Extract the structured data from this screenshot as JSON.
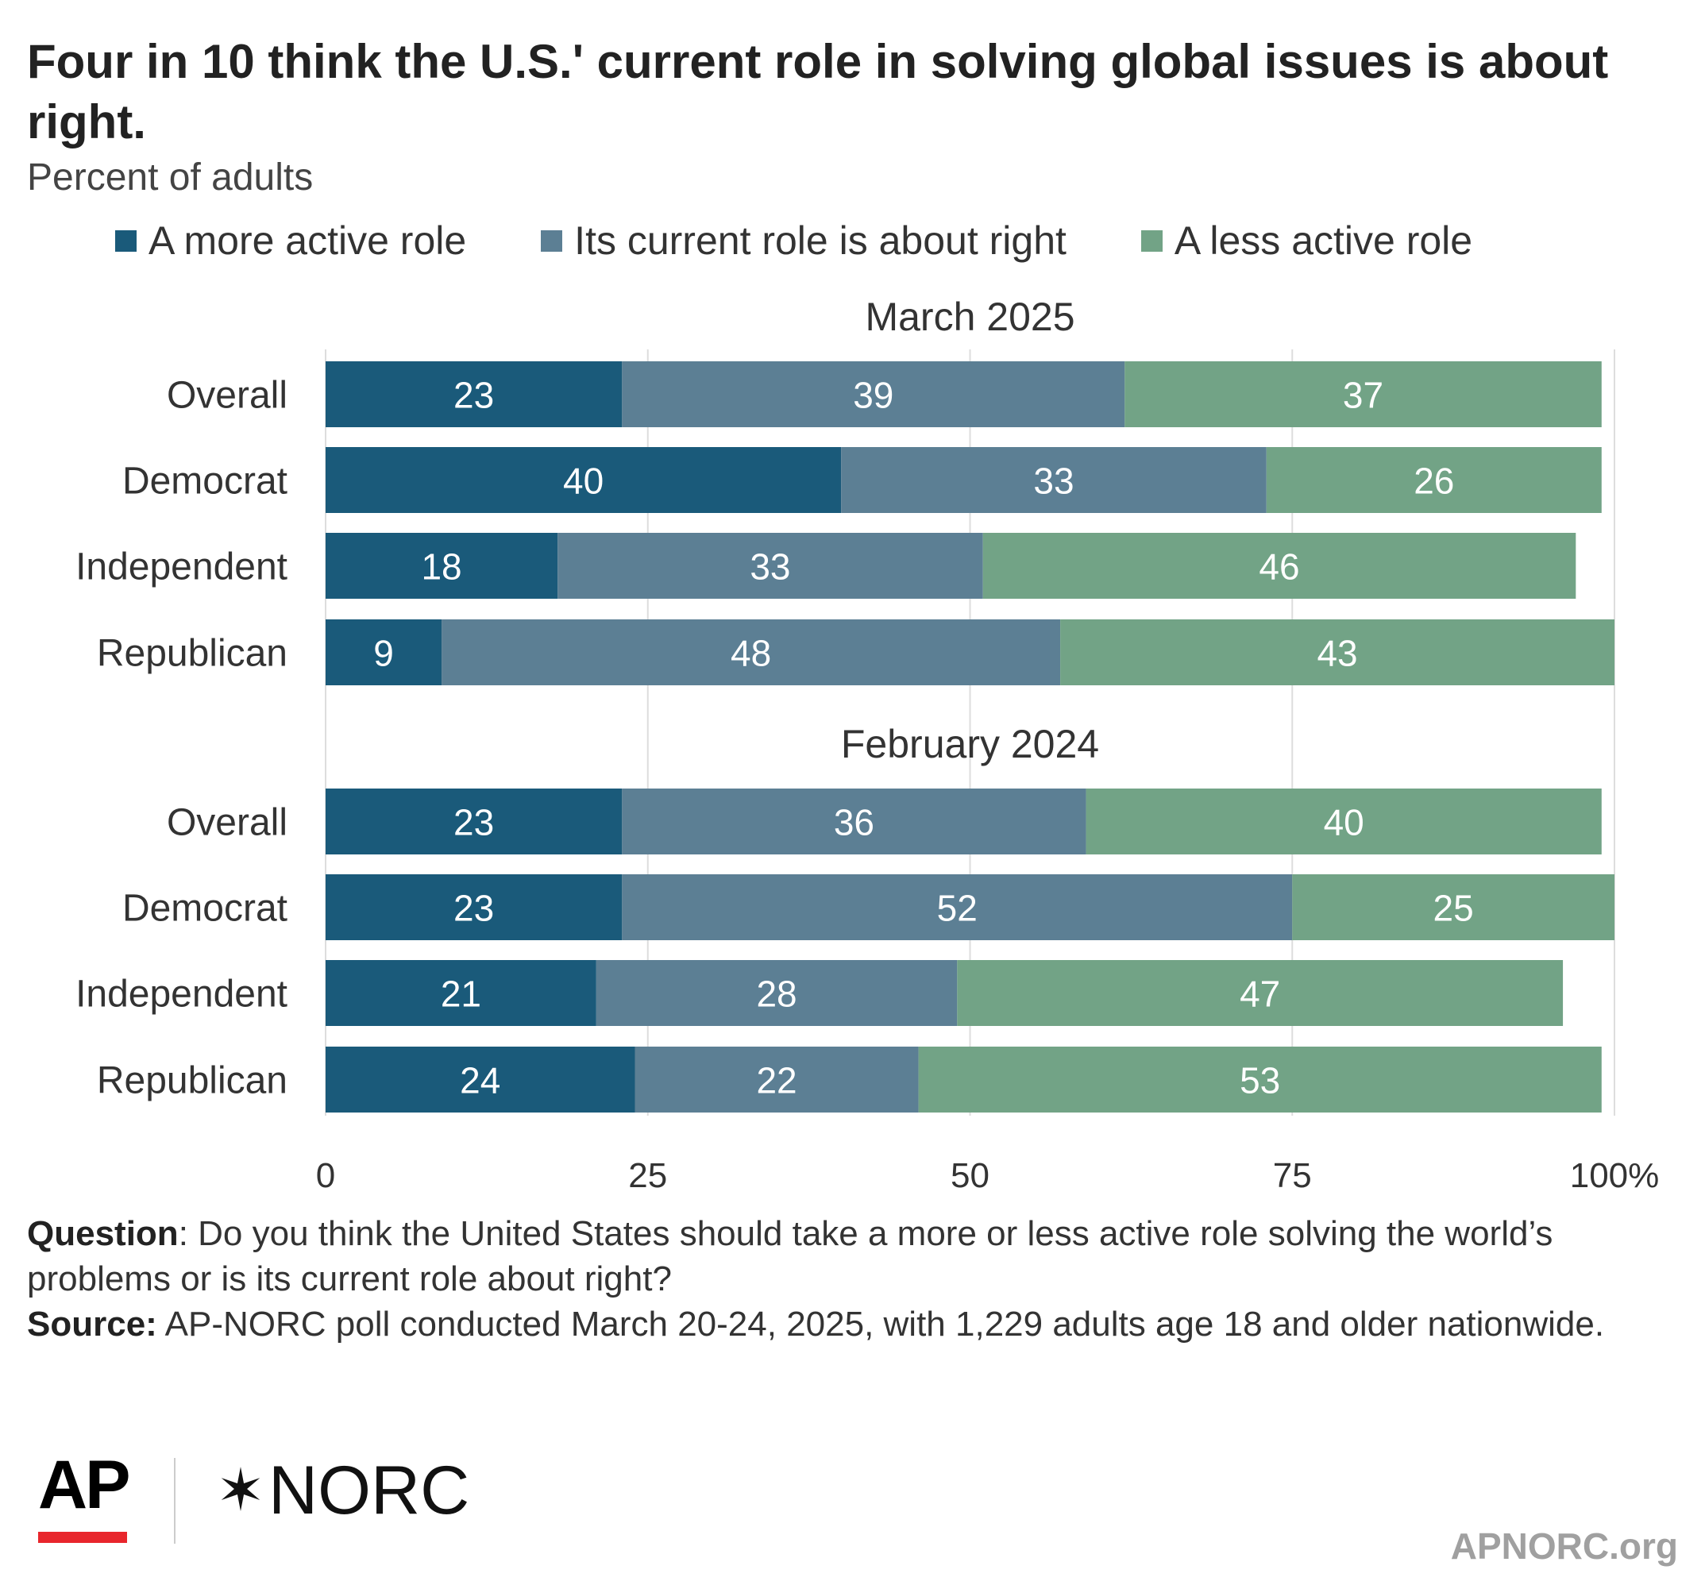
{
  "title": "Four in 10 think the U.S.' current role in solving global issues is about right.",
  "subtitle": "Percent of adults",
  "colors": {
    "more_active": "#1a5a7a",
    "about_right": "#5c7f94",
    "less_active": "#72a386",
    "bar_label": "#ffffff",
    "grid": "#dddddd"
  },
  "chart_data": {
    "type": "bar",
    "orientation": "horizontal",
    "stacked": true,
    "series": [
      {
        "name": "A more active role"
      },
      {
        "name": "Its current role is about right"
      },
      {
        "name": "A less active role"
      }
    ],
    "panels": [
      {
        "title": "March 2025",
        "categories": [
          "Overall",
          "Democrat",
          "Independent",
          "Republican"
        ],
        "series_values": [
          [
            23,
            40,
            18,
            9
          ],
          [
            39,
            33,
            33,
            48
          ],
          [
            37,
            26,
            46,
            43
          ]
        ]
      },
      {
        "title": "February 2024",
        "categories": [
          "Overall",
          "Democrat",
          "Independent",
          "Republican"
        ],
        "series_values": [
          [
            23,
            23,
            21,
            24
          ],
          [
            36,
            52,
            28,
            22
          ],
          [
            40,
            25,
            47,
            53
          ]
        ]
      }
    ],
    "x_ticks": [
      "0",
      "25",
      "50",
      "75",
      "100%"
    ],
    "xlim": [
      0,
      100
    ],
    "grid": true,
    "legend_position": "top"
  },
  "note": {
    "question_label": "Question",
    "question_text": ": Do you think the United States should take a more or less active role solving the world’s problems or is its current role about right?",
    "source_label": "Source:",
    "source_text": " AP-NORC poll conducted March 20-24, 2025, with 1,229 adults age 18 and older nationwide."
  },
  "branding": {
    "ap": "AP",
    "norc_star": "✶",
    "norc": "NORC",
    "site": "APNORC.org"
  }
}
